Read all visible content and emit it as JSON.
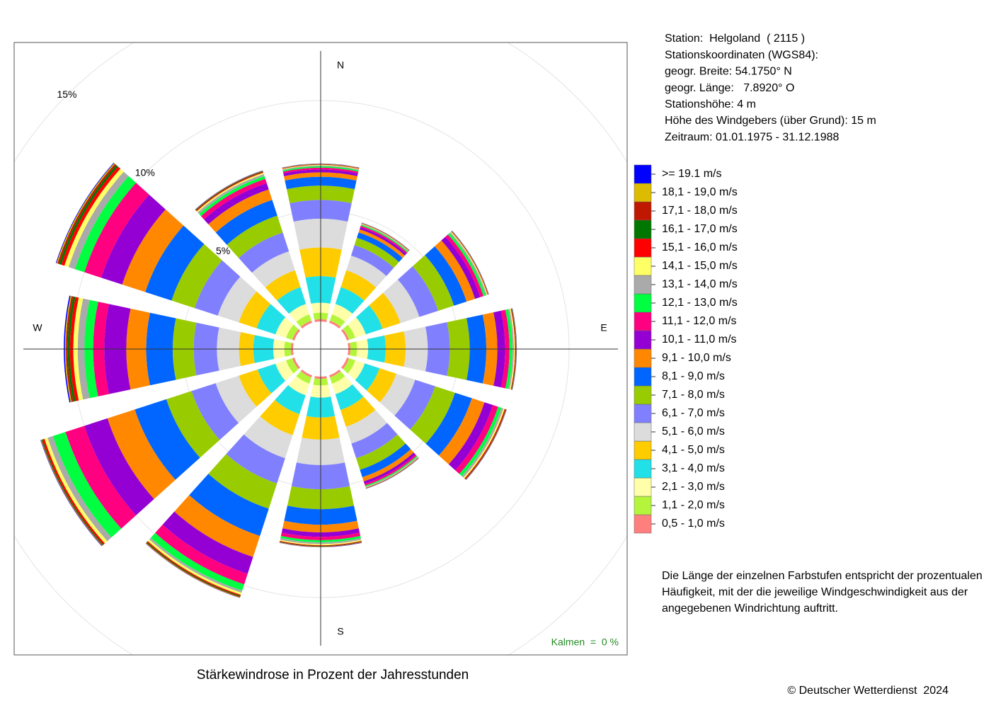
{
  "chart_data": {
    "type": "windrose",
    "title": "Stärkewindrose in Prozent der Jahresstunden",
    "categories": [
      "N",
      null,
      null,
      "E",
      null,
      null,
      "S",
      null,
      null,
      "W",
      null,
      null
    ],
    "rlim": [
      0,
      15
    ],
    "rticks": [
      {
        "value": 5,
        "label": "5%"
      },
      {
        "value": 10,
        "label": "10%"
      },
      {
        "value": 15,
        "label": "15%"
      }
    ],
    "grid": true,
    "calm_label": "Kalmen  =  0 %",
    "series": [
      {
        "name": "0,5 - 1,0 m/s",
        "color": "#ff7f7f",
        "values": [
          0.1,
          0.1,
          0.1,
          0.1,
          0.1,
          0.1,
          0.1,
          0.1,
          0.1,
          0.1,
          0.1,
          0.1
        ]
      },
      {
        "name": "1,1 - 2,0 m/s",
        "color": "#b4f53c",
        "values": [
          0.3,
          0.3,
          0.3,
          0.3,
          0.3,
          0.3,
          0.3,
          0.3,
          0.3,
          0.3,
          0.3,
          0.3
        ]
      },
      {
        "name": "2,1 - 3,0 m/s",
        "color": "#ffffaa",
        "values": [
          0.45,
          0.5,
          0.5,
          0.5,
          0.45,
          0.5,
          0.55,
          0.55,
          0.5,
          0.5,
          0.5,
          0.5
        ]
      },
      {
        "name": "3,1 - 4,0 m/s",
        "color": "#22e0e8",
        "values": [
          1.2,
          0.8,
          0.8,
          0.8,
          0.7,
          0.75,
          0.9,
          0.9,
          0.85,
          0.9,
          0.9,
          0.8
        ]
      },
      {
        "name": "4,1 - 5,0 m/s",
        "color": "#ffcc00",
        "values": [
          1.3,
          0.8,
          0.85,
          0.9,
          0.8,
          0.8,
          1.0,
          1.0,
          0.9,
          0.65,
          0.85,
          0.8
        ]
      },
      {
        "name": "5,1 - 6,0 m/s",
        "color": "#dcdcdc",
        "values": [
          1.3,
          0.7,
          0.9,
          1.0,
          0.9,
          0.8,
          1.15,
          1.1,
          1.1,
          1.0,
          1.0,
          0.9
        ]
      },
      {
        "name": "6,1 - 7,0 m/s",
        "color": "#8080ff",
        "values": [
          0.85,
          0.5,
          0.9,
          1.0,
          0.95,
          0.7,
          1.1,
          1.2,
          1.15,
          1.05,
          1.1,
          0.9
        ]
      },
      {
        "name": "7,1 - 8,0 m/s",
        "color": "#99cc00",
        "values": [
          0.65,
          0.35,
          0.75,
          0.9,
          0.95,
          0.55,
          0.9,
          1.2,
          1.2,
          0.95,
          1.1,
          0.8
        ]
      },
      {
        "name": "8,1 - 9,0 m/s",
        "color": "#0066ff",
        "values": [
          0.4,
          0.25,
          0.6,
          0.75,
          0.8,
          0.35,
          0.7,
          1.3,
          1.5,
          1.2,
          1.25,
          0.75
        ]
      },
      {
        "name": "9,1 - 10,0 m/s",
        "color": "#ff8800",
        "values": [
          0.2,
          0.15,
          0.4,
          0.5,
          0.6,
          0.2,
          0.35,
          1.0,
          1.3,
          0.9,
          1.1,
          0.5
        ]
      },
      {
        "name": "10,1 - 11,0 m/s",
        "color": "#9400d3",
        "values": [
          0.13,
          0.1,
          0.25,
          0.35,
          0.4,
          0.12,
          0.2,
          0.8,
          1.1,
          1.0,
          1.0,
          0.3
        ]
      },
      {
        "name": "11,1 - 12,0 m/s",
        "color": "#ff0080",
        "values": [
          0.08,
          0.07,
          0.15,
          0.2,
          0.25,
          0.08,
          0.15,
          0.5,
          0.9,
          0.5,
          0.8,
          0.2
        ]
      },
      {
        "name": "12,1 - 13,0 m/s",
        "color": "#00ff40",
        "values": [
          0.06,
          0.05,
          0.1,
          0.13,
          0.15,
          0.05,
          0.1,
          0.3,
          0.6,
          0.4,
          0.45,
          0.13
        ]
      },
      {
        "name": "13,1 - 14,0 m/s",
        "color": "#aaaaaa",
        "values": [
          0.04,
          0.03,
          0.06,
          0.07,
          0.1,
          0.03,
          0.08,
          0.1,
          0.25,
          0.3,
          0.3,
          0.1
        ]
      },
      {
        "name": "14,1 - 15,0 m/s",
        "color": "#ffff66",
        "values": [
          0.03,
          0.02,
          0.04,
          0.05,
          0.06,
          0.02,
          0.05,
          0.1,
          0.15,
          0.2,
          0.2,
          0.06
        ]
      },
      {
        "name": "15,1 - 16,0 m/s",
        "color": "#ff0000",
        "values": [
          0.02,
          0.01,
          0.02,
          0.03,
          0.04,
          0.01,
          0.03,
          0.05,
          0.08,
          0.15,
          0.15,
          0.04
        ]
      },
      {
        "name": "16,1 - 17,0 m/s",
        "color": "#007700",
        "values": [
          0.01,
          0.01,
          0.01,
          0.02,
          0.02,
          0.01,
          0.02,
          0.04,
          0.04,
          0.1,
          0.1,
          0.03
        ]
      },
      {
        "name": "17,1 - 18,0 m/s",
        "color": "#c01800",
        "values": [
          0.01,
          0.01,
          0.01,
          0.01,
          0.02,
          0.01,
          0.02,
          0.03,
          0.03,
          0.08,
          0.08,
          0.02
        ]
      },
      {
        "name": "18,1 - 19,0 m/s",
        "color": "#ddbb00",
        "values": [
          0.01,
          0.01,
          0.01,
          0.01,
          0.01,
          0.01,
          0.01,
          0.02,
          0.02,
          0.05,
          0.05,
          0.01
        ]
      },
      {
        "name": ">= 19.1 m/s",
        "color": "#0000ff",
        "values": [
          0.01,
          0.01,
          0.01,
          0.01,
          0.01,
          0.01,
          0.01,
          0.01,
          0.02,
          0.05,
          0.03,
          0.01
        ]
      }
    ]
  },
  "info": [
    "Station:  Helgoland  ( 2115 )",
    "Stationskoordinaten (WGS84):",
    "geogr. Breite: 54.1750° N",
    "geogr. Länge:   7.8920° O",
    "Stationshöhe: 4 m",
    "Höhe des Windgebers (über Grund): 15 m",
    "Zeitraum: 01.01.1975 - 31.12.1988"
  ],
  "description": [
    "Die Länge der einzelnen Farbstufen entspricht der prozentualen",
    "Häufigkeit, mit der die jeweilige Windgeschwindigkeit aus der",
    "angegebenen Windrichtung auftritt."
  ],
  "copyright": "© Deutscher Wetterdienst  2024"
}
